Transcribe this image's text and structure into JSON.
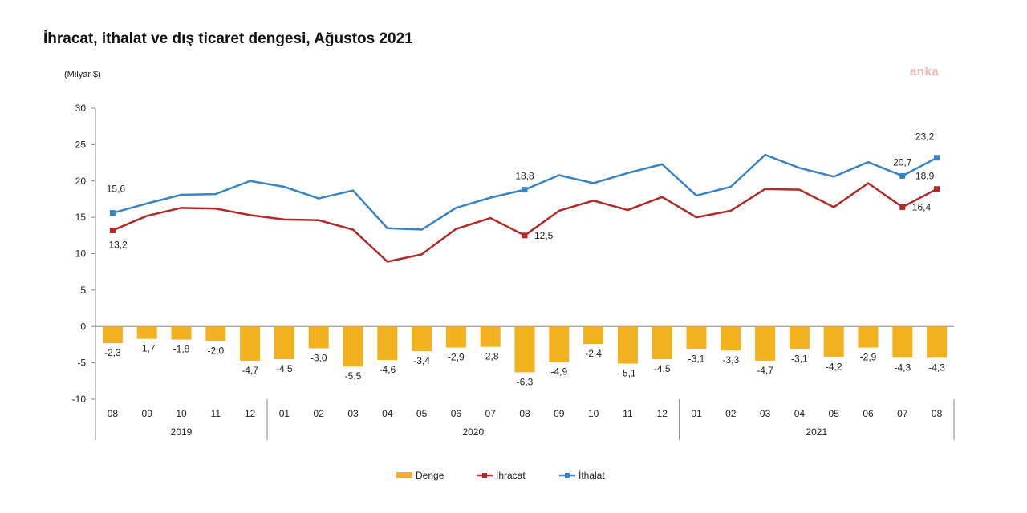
{
  "title": "İhracat, ithalat ve dış ticaret dengesi, Ağustos 2021",
  "unit_label": "(Milyar $)",
  "watermark": "anka",
  "chart_data": {
    "type": "bar+line",
    "ylim": [
      -10,
      30
    ],
    "yticks": [
      30,
      25,
      20,
      15,
      10,
      5,
      0,
      -5,
      -10
    ],
    "months": [
      "08",
      "09",
      "10",
      "11",
      "12",
      "01",
      "02",
      "03",
      "04",
      "05",
      "06",
      "07",
      "08",
      "09",
      "10",
      "11",
      "12",
      "01",
      "02",
      "03",
      "04",
      "05",
      "06",
      "07",
      "08"
    ],
    "years": [
      {
        "label": "2019",
        "start": 0,
        "end": 4
      },
      {
        "label": "2020",
        "start": 5,
        "end": 16
      },
      {
        "label": "2021",
        "start": 17,
        "end": 24
      }
    ],
    "series": [
      {
        "name": "Denge",
        "type": "bar",
        "color": "#f2b21f",
        "values": [
          -2.3,
          -1.7,
          -1.8,
          -2.0,
          -4.7,
          -4.5,
          -3.0,
          -5.5,
          -4.6,
          -3.4,
          -2.9,
          -2.8,
          -6.3,
          -4.9,
          -2.4,
          -5.1,
          -4.5,
          -3.1,
          -3.3,
          -4.7,
          -3.1,
          -4.2,
          -2.9,
          -4.3,
          -4.3
        ],
        "labels": [
          "-2,3",
          "-1,7",
          "-1,8",
          "-2,0",
          "-4,7",
          "-4,5",
          "-3,0",
          "-5,5",
          "-4,6",
          "-3,4",
          "-2,9",
          "-2,8",
          "-6,3",
          "-4,9",
          "-2,4",
          "-5,1",
          "-4,5",
          "-3,1",
          "-3,3",
          "-4,7",
          "-3,1",
          "-4,2",
          "-2,9",
          "-4,3",
          "-4,3"
        ]
      },
      {
        "name": "İhracat",
        "type": "line",
        "color": "#b02a2a",
        "values": [
          13.2,
          15.2,
          16.3,
          16.2,
          15.3,
          14.7,
          14.6,
          13.3,
          8.9,
          9.9,
          13.4,
          14.9,
          12.5,
          15.9,
          17.3,
          16.0,
          17.8,
          15.0,
          15.9,
          18.9,
          18.8,
          16.4,
          19.7,
          16.4,
          18.9
        ],
        "labels": [
          {
            "i": 0,
            "text": "13,2"
          },
          {
            "i": 12,
            "text": "12,5"
          },
          {
            "i": 23,
            "text": "16,4"
          },
          {
            "i": 24,
            "text": "18,9"
          }
        ]
      },
      {
        "name": "İthalat",
        "type": "line",
        "color": "#3a84c4",
        "values": [
          15.6,
          16.9,
          18.1,
          18.2,
          20.0,
          19.2,
          17.6,
          18.7,
          13.5,
          13.3,
          16.3,
          17.7,
          18.8,
          20.8,
          19.7,
          21.1,
          22.3,
          18.0,
          19.2,
          23.6,
          21.8,
          20.6,
          22.6,
          20.7,
          23.2
        ],
        "labels": [
          {
            "i": 0,
            "text": "15,6"
          },
          {
            "i": 12,
            "text": "18,8"
          },
          {
            "i": 23,
            "text": "20,7"
          },
          {
            "i": 24,
            "text": "23,2"
          }
        ]
      }
    ]
  }
}
